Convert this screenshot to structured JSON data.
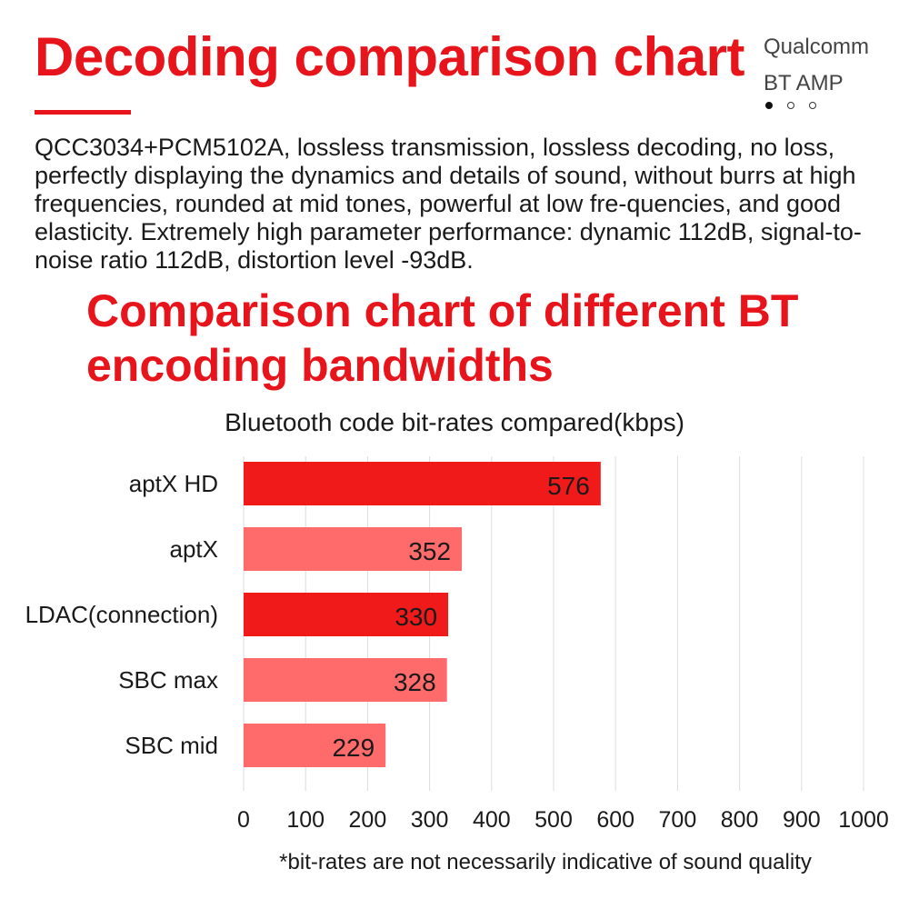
{
  "header": {
    "title": "Decoding comparison chart",
    "brand_line1": "Qualcomm",
    "brand_line2": "BT AMP",
    "carousel_active_index": 0,
    "carousel_count": 3
  },
  "description": "QCC3034+PCM5102A, lossless transmission, lossless decoding, no loss, perfectly displaying the dynamics and details of sound, without burrs at high frequencies, rounded at mid tones, powerful at low fre-quencies, and good elasticity. Extremely high parameter performance: dynamic 112dB, signal-to-noise ratio 112dB, distortion level -93dB.",
  "section_title": "Comparison chart of different BT encoding bandwidths",
  "colors": {
    "accent": "#e8141b",
    "bar_primary": "#f01a1a",
    "bar_secondary": "#ff6b6b",
    "grid": "#dddddd"
  },
  "chart_data": {
    "type": "bar",
    "orientation": "horizontal",
    "title": "Bluetooth code bit-rates compared(kbps)",
    "categories": [
      "aptX HD",
      "aptX",
      "LDAC(connection)",
      "SBC max",
      "SBC mid"
    ],
    "values": [
      576,
      352,
      330,
      328,
      229
    ],
    "bar_styles": [
      "primary",
      "secondary",
      "primary",
      "secondary",
      "secondary"
    ],
    "xlim": [
      0,
      1000
    ],
    "xticks": [
      0,
      100,
      200,
      300,
      400,
      500,
      600,
      700,
      800,
      900,
      1000
    ],
    "grid": true,
    "data_labels": true,
    "footnote": "*bit-rates are not necessarily indicative of sound quality"
  }
}
